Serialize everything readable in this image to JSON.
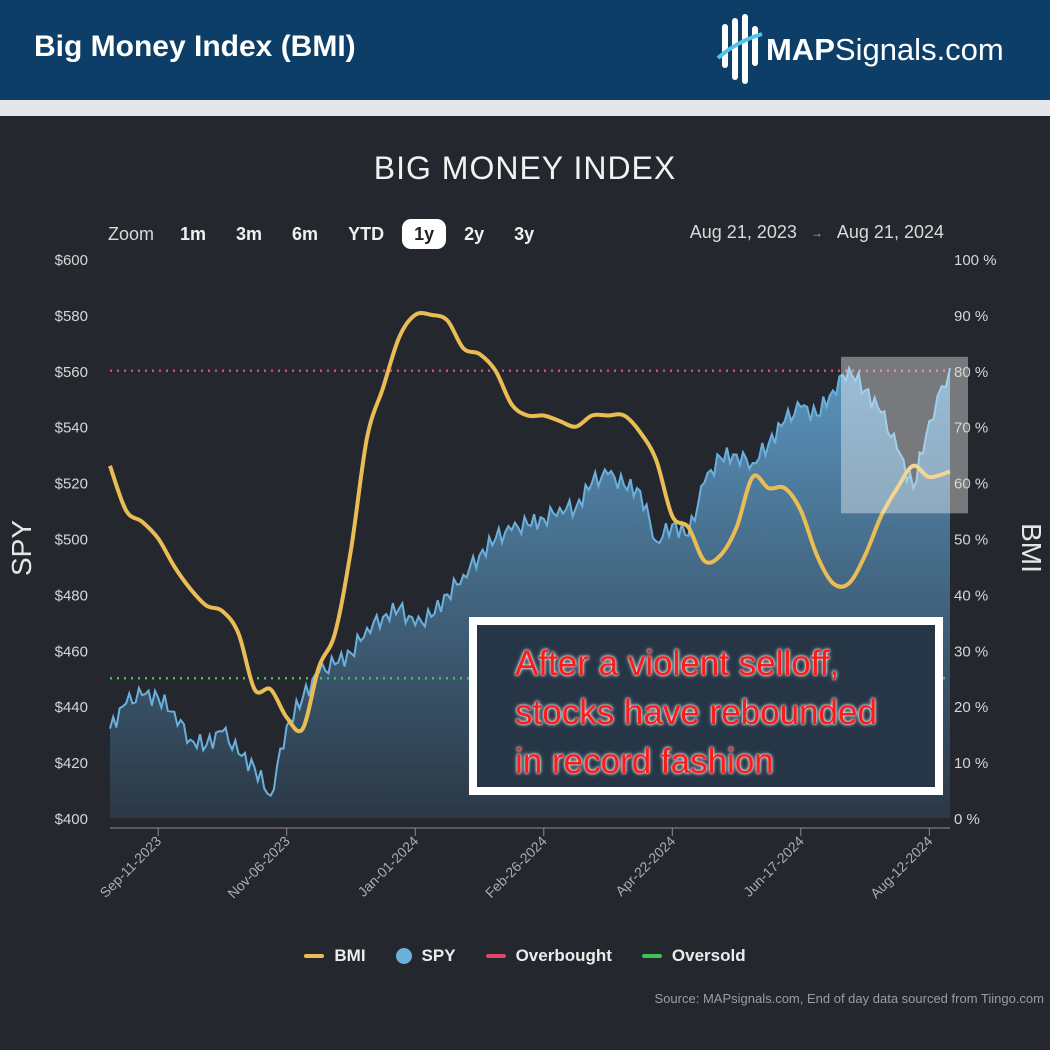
{
  "header": {
    "title": "Big Money Index (BMI)",
    "logo_bold": "MAP",
    "logo_rest": "Signals.com"
  },
  "zoom": {
    "label": "Zoom",
    "options": [
      "1m",
      "3m",
      "6m",
      "YTD",
      "1y",
      "2y",
      "3y"
    ],
    "active": "1y"
  },
  "date_range": {
    "from": "Aug 21, 2023",
    "arrow": "→",
    "to": "Aug 21, 2024"
  },
  "annotation": {
    "lines": [
      "After a violent selloff,",
      "stocks have rebounded",
      "in record fashion"
    ]
  },
  "source": "Source: MAPsignals.com, End of day data sourced from Tiingo.com",
  "colors": {
    "bmi": "#e9bd53",
    "spy": "#6bb0dd",
    "overbought": "#d8496b",
    "oversold": "#3fc255"
  },
  "chart_data": {
    "type": "line",
    "title": "BIG MONEY INDEX",
    "y_left": {
      "label": "SPY",
      "min": 400,
      "max": 600,
      "ticks": [
        "$400",
        "$420",
        "$440",
        "$460",
        "$480",
        "$500",
        "$520",
        "$540",
        "$560",
        "$580",
        "$600"
      ]
    },
    "y_right": {
      "label": "BMI",
      "min": 0,
      "max": 100,
      "ticks": [
        "0 %",
        "10 %",
        "20 %",
        "30 %",
        "40 %",
        "50 %",
        "60 %",
        "70 %",
        "80 %",
        "90 %",
        "100 %"
      ]
    },
    "x": {
      "start": "2023-08-21",
      "end": "2024-08-21",
      "tick_dates": [
        "2023-09-11",
        "2023-11-06",
        "2024-01-01",
        "2024-02-26",
        "2024-04-22",
        "2024-06-17",
        "2024-08-12"
      ],
      "tick_labels": [
        "Sep-11-2023",
        "Nov-06-2023",
        "Jan-01-2024",
        "Feb-26-2024",
        "Apr-22-2024",
        "Jun-17-2024",
        "Aug-12-2024"
      ]
    },
    "reference_lines": [
      {
        "name": "Overbought",
        "value": 80
      },
      {
        "name": "Oversold",
        "value": 25
      }
    ],
    "series": [
      {
        "name": "BMI",
        "axis": "right",
        "points": [
          [
            "2023-08-21",
            63
          ],
          [
            "2023-08-28",
            55
          ],
          [
            "2023-09-04",
            53
          ],
          [
            "2023-09-11",
            50
          ],
          [
            "2023-09-18",
            45
          ],
          [
            "2023-09-25",
            41
          ],
          [
            "2023-10-02",
            38
          ],
          [
            "2023-10-09",
            37
          ],
          [
            "2023-10-16",
            33
          ],
          [
            "2023-10-23",
            23
          ],
          [
            "2023-10-30",
            23
          ],
          [
            "2023-11-06",
            18
          ],
          [
            "2023-11-13",
            16
          ],
          [
            "2023-11-20",
            27
          ],
          [
            "2023-11-27",
            33
          ],
          [
            "2023-12-04",
            48
          ],
          [
            "2023-12-11",
            68
          ],
          [
            "2023-12-18",
            77
          ],
          [
            "2023-12-25",
            86
          ],
          [
            "2024-01-01",
            90
          ],
          [
            "2024-01-08",
            90
          ],
          [
            "2024-01-15",
            89
          ],
          [
            "2024-01-22",
            84
          ],
          [
            "2024-01-29",
            83
          ],
          [
            "2024-02-05",
            80
          ],
          [
            "2024-02-12",
            74
          ],
          [
            "2024-02-19",
            72
          ],
          [
            "2024-02-26",
            72
          ],
          [
            "2024-03-04",
            71
          ],
          [
            "2024-03-11",
            70
          ],
          [
            "2024-03-18",
            72
          ],
          [
            "2024-03-25",
            72
          ],
          [
            "2024-04-01",
            72
          ],
          [
            "2024-04-08",
            69
          ],
          [
            "2024-04-15",
            64
          ],
          [
            "2024-04-22",
            54
          ],
          [
            "2024-04-29",
            52
          ],
          [
            "2024-05-06",
            46
          ],
          [
            "2024-05-13",
            47
          ],
          [
            "2024-05-20",
            52
          ],
          [
            "2024-05-27",
            61
          ],
          [
            "2024-06-03",
            59
          ],
          [
            "2024-06-10",
            59
          ],
          [
            "2024-06-17",
            55
          ],
          [
            "2024-06-24",
            47
          ],
          [
            "2024-07-01",
            42
          ],
          [
            "2024-07-08",
            42
          ],
          [
            "2024-07-15",
            47
          ],
          [
            "2024-07-22",
            54
          ],
          [
            "2024-07-29",
            59
          ],
          [
            "2024-08-05",
            63
          ],
          [
            "2024-08-12",
            61
          ],
          [
            "2024-08-21",
            62
          ]
        ]
      },
      {
        "name": "SPY",
        "axis": "left",
        "style": "area",
        "points": [
          [
            "2023-08-21",
            432
          ],
          [
            "2023-08-28",
            441
          ],
          [
            "2023-09-04",
            444
          ],
          [
            "2023-09-11",
            443
          ],
          [
            "2023-09-18",
            438
          ],
          [
            "2023-09-25",
            428
          ],
          [
            "2023-10-02",
            426
          ],
          [
            "2023-10-09",
            431
          ],
          [
            "2023-10-16",
            423
          ],
          [
            "2023-10-23",
            418
          ],
          [
            "2023-10-30",
            408
          ],
          [
            "2023-11-06",
            433
          ],
          [
            "2023-11-13",
            443
          ],
          [
            "2023-11-20",
            452
          ],
          [
            "2023-11-27",
            455
          ],
          [
            "2023-12-04",
            459
          ],
          [
            "2023-12-11",
            468
          ],
          [
            "2023-12-18",
            472
          ],
          [
            "2023-12-25",
            475
          ],
          [
            "2024-01-01",
            469
          ],
          [
            "2024-01-08",
            472
          ],
          [
            "2024-01-15",
            480
          ],
          [
            "2024-01-22",
            487
          ],
          [
            "2024-01-29",
            494
          ],
          [
            "2024-02-05",
            500
          ],
          [
            "2024-02-12",
            503
          ],
          [
            "2024-02-19",
            505
          ],
          [
            "2024-02-26",
            507
          ],
          [
            "2024-03-04",
            511
          ],
          [
            "2024-03-11",
            511
          ],
          [
            "2024-03-18",
            520
          ],
          [
            "2024-03-25",
            523
          ],
          [
            "2024-04-01",
            519
          ],
          [
            "2024-04-08",
            517
          ],
          [
            "2024-04-15",
            499
          ],
          [
            "2024-04-22",
            505
          ],
          [
            "2024-04-29",
            501
          ],
          [
            "2024-05-06",
            520
          ],
          [
            "2024-05-13",
            529
          ],
          [
            "2024-05-20",
            530
          ],
          [
            "2024-05-27",
            527
          ],
          [
            "2024-06-03",
            534
          ],
          [
            "2024-06-10",
            542
          ],
          [
            "2024-06-17",
            547
          ],
          [
            "2024-06-24",
            544
          ],
          [
            "2024-07-01",
            553
          ],
          [
            "2024-07-08",
            561
          ],
          [
            "2024-07-15",
            553
          ],
          [
            "2024-07-22",
            545
          ],
          [
            "2024-07-29",
            532
          ],
          [
            "2024-08-05",
            518
          ],
          [
            "2024-08-12",
            542
          ],
          [
            "2024-08-21",
            561
          ]
        ]
      }
    ],
    "legend": [
      "BMI",
      "SPY",
      "Overbought",
      "Oversold"
    ],
    "legend_position": "bottom-center",
    "grid": false
  }
}
